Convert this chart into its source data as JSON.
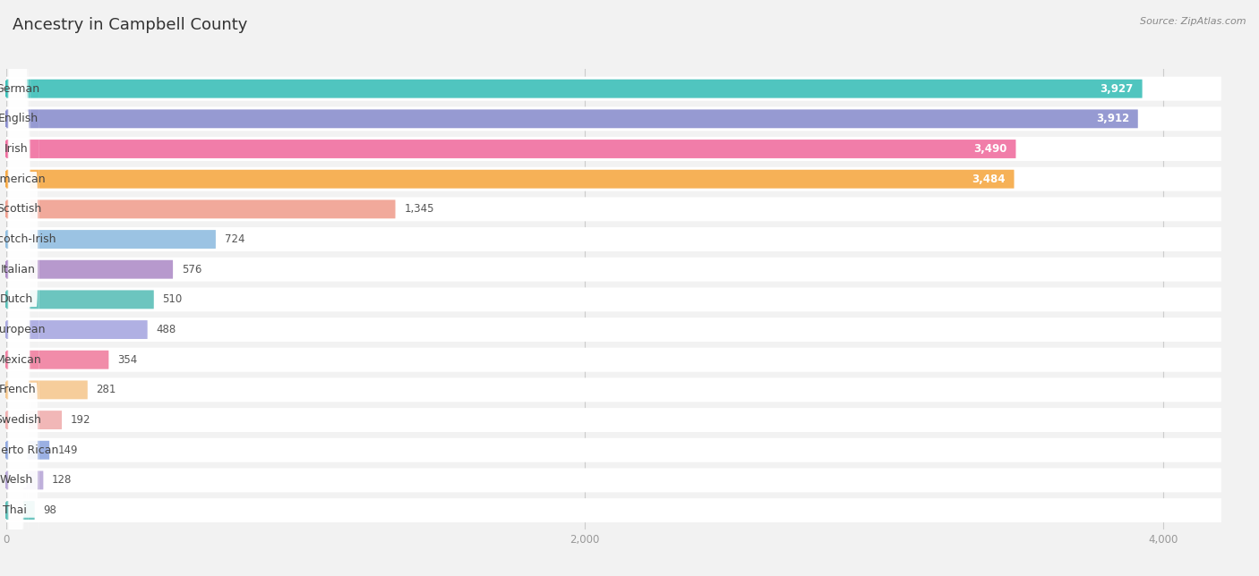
{
  "title": "Ancestry in Campbell County",
  "source": "Source: ZipAtlas.com",
  "categories": [
    "German",
    "English",
    "Irish",
    "American",
    "Scottish",
    "Scotch-Irish",
    "Italian",
    "Dutch",
    "European",
    "Mexican",
    "French",
    "Swedish",
    "Puerto Rican",
    "Welsh",
    "Thai"
  ],
  "values": [
    3927,
    3912,
    3490,
    3484,
    1345,
    724,
    576,
    510,
    488,
    354,
    281,
    192,
    149,
    128,
    98
  ],
  "bar_colors": [
    "#3dbfb8",
    "#8b8fce",
    "#f06fa0",
    "#f5a945",
    "#f0a090",
    "#90bde0",
    "#b08ec8",
    "#5cbfb8",
    "#a8a8e0",
    "#f080a0",
    "#f5c890",
    "#f0b0b0",
    "#90a8e0",
    "#b8a8d8",
    "#5cbfb8"
  ],
  "xlim_max": 4200,
  "background_color": "#f2f2f2",
  "bar_background": "#ffffff",
  "title_fontsize": 13,
  "label_fontsize": 9,
  "value_fontsize": 8.5,
  "source_fontsize": 8
}
